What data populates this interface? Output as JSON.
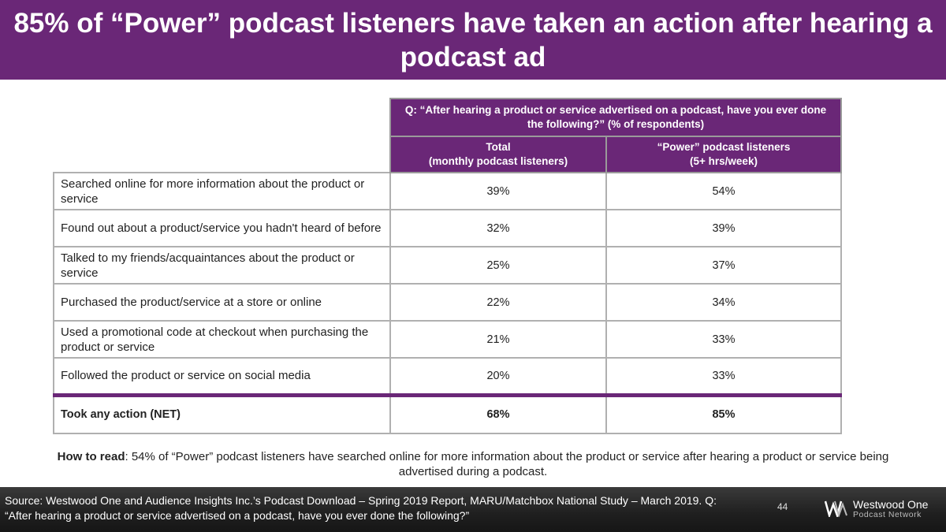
{
  "title": "85% of “Power” podcast listeners have taken an action after hearing a podcast ad",
  "table": {
    "question": "Q: “After hearing a product or service advertised on a podcast, have you ever done the following?” (% of respondents)",
    "columns": [
      {
        "line1": "Total",
        "line2": "(monthly podcast listeners)"
      },
      {
        "line1": "“Power” podcast listeners",
        "line2": "(5+ hrs/week)"
      }
    ],
    "rows": [
      {
        "label": "Searched online for more information about the product or service",
        "total": "39%",
        "power": "54%"
      },
      {
        "label": "Found out about a product/service you hadn't heard of before",
        "total": "32%",
        "power": "39%"
      },
      {
        "label": "Talked to my friends/acquaintances about the product or service",
        "total": "25%",
        "power": "37%"
      },
      {
        "label": "Purchased the product/service at a store or online",
        "total": "22%",
        "power": "34%"
      },
      {
        "label": "Used a promotional code at checkout when purchasing the product or service",
        "total": "21%",
        "power": "33%"
      },
      {
        "label": "Followed the product or service on social media",
        "total": "20%",
        "power": "33%"
      }
    ],
    "net": {
      "label": "Took any action (NET)",
      "total": "68%",
      "power": "85%"
    }
  },
  "how_to_read": {
    "lead": "How to read",
    "text": ": 54% of “Power” podcast listeners have searched online for more information about the product or service after hearing a product or service being advertised during a podcast."
  },
  "footer": {
    "source": "Source: Westwood One and Audience Insights Inc.’s Podcast Download – Spring 2019 Report, MARU/Matchbox National Study – March 2019. Q: “After hearing a product or service advertised on a podcast, have you ever done the following?”",
    "page_number": "44",
    "logo_name": "Westwood One",
    "logo_sub": "Podcast Network"
  },
  "colors": {
    "accent": "#6a2777",
    "border": "#b0b0b0"
  }
}
